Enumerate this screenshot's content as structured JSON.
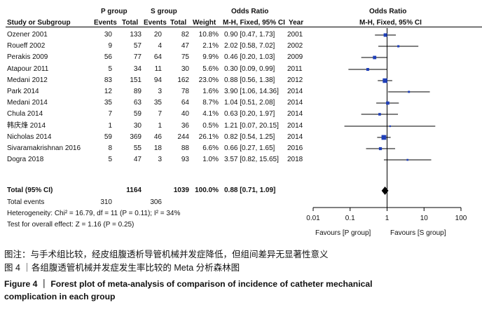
{
  "header": {
    "group_p": "P group",
    "group_s": "S group",
    "odds_ratio": "Odds Ratio",
    "study": "Study or Subgroup",
    "events": "Events",
    "total": "Total",
    "weight": "Weight",
    "method": "M-H, Fixed, 95% CI",
    "year": "Year",
    "plot_title": "Odds Ratio",
    "plot_method": "M-H, Fixed, 95% CI"
  },
  "chart_data": {
    "type": "forest",
    "x_scale": "log",
    "xlim": [
      0.01,
      100
    ],
    "ticks": [
      "0.01",
      "0.1",
      "1",
      "10",
      "100"
    ],
    "favours_left": "Favours [P group]",
    "favours_right": "Favours [S group]",
    "studies": [
      {
        "study": "Ozener 2001",
        "p_events": "30",
        "p_total": "133",
        "s_events": "20",
        "s_total": "82",
        "weight": "10.8%",
        "ci_text": "0.90 [0.47, 1.73]",
        "year": "2001",
        "or": 0.9,
        "lo": 0.47,
        "hi": 1.73,
        "w": 10.8
      },
      {
        "study": "Roueff 2002",
        "p_events": "9",
        "p_total": "57",
        "s_events": "4",
        "s_total": "47",
        "weight": "2.1%",
        "ci_text": "2.02 [0.58, 7.02]",
        "year": "2002",
        "or": 2.02,
        "lo": 0.58,
        "hi": 7.02,
        "w": 2.1
      },
      {
        "study": "Perakis 2009",
        "p_events": "56",
        "p_total": "77",
        "s_events": "64",
        "s_total": "75",
        "weight": "9.9%",
        "ci_text": "0.46 [0.20, 1.03]",
        "year": "2009",
        "or": 0.46,
        "lo": 0.2,
        "hi": 1.03,
        "w": 9.9
      },
      {
        "study": "Atapour 2011",
        "p_events": "5",
        "p_total": "34",
        "s_events": "11",
        "s_total": "30",
        "weight": "5.6%",
        "ci_text": "0.30 [0.09, 0.99]",
        "year": "2011",
        "or": 0.3,
        "lo": 0.09,
        "hi": 0.99,
        "w": 5.6
      },
      {
        "study": "Medani 2012",
        "p_events": "83",
        "p_total": "151",
        "s_events": "94",
        "s_total": "162",
        "weight": "23.0%",
        "ci_text": "0.88 [0.56, 1.38]",
        "year": "2012",
        "or": 0.88,
        "lo": 0.56,
        "hi": 1.38,
        "w": 23.0
      },
      {
        "study": "Park 2014",
        "p_events": "12",
        "p_total": "89",
        "s_events": "3",
        "s_total": "78",
        "weight": "1.6%",
        "ci_text": "3.90 [1.06, 14.36]",
        "year": "2014",
        "or": 3.9,
        "lo": 1.06,
        "hi": 14.36,
        "w": 1.6
      },
      {
        "study": "Medani 2014",
        "p_events": "35",
        "p_total": "63",
        "s_events": "35",
        "s_total": "64",
        "weight": "8.7%",
        "ci_text": "1.04 [0.51, 2.08]",
        "year": "2014",
        "or": 1.04,
        "lo": 0.51,
        "hi": 2.08,
        "w": 8.7
      },
      {
        "study": "Chula 2014",
        "p_events": "7",
        "p_total": "59",
        "s_events": "7",
        "s_total": "40",
        "weight": "4.1%",
        "ci_text": "0.63 [0.20, 1.97]",
        "year": "2014",
        "or": 0.63,
        "lo": 0.2,
        "hi": 1.97,
        "w": 4.1
      },
      {
        "study": "韩庆烽 2014",
        "p_events": "1",
        "p_total": "30",
        "s_events": "1",
        "s_total": "36",
        "weight": "0.5%",
        "ci_text": "1.21 [0.07, 20.15]",
        "year": "2014",
        "or": 1.21,
        "lo": 0.07,
        "hi": 20.15,
        "w": 0.5
      },
      {
        "study": "Nicholas 2014",
        "p_events": "59",
        "p_total": "369",
        "s_events": "46",
        "s_total": "244",
        "weight": "26.1%",
        "ci_text": "0.82 [0.54, 1.25]",
        "year": "2014",
        "or": 0.82,
        "lo": 0.54,
        "hi": 1.25,
        "w": 26.1
      },
      {
        "study": "Sivaramakrishnan 2016",
        "p_events": "8",
        "p_total": "55",
        "s_events": "18",
        "s_total": "88",
        "weight": "6.6%",
        "ci_text": "0.66 [0.27, 1.65]",
        "year": "2016",
        "or": 0.66,
        "lo": 0.27,
        "hi": 1.65,
        "w": 6.6
      },
      {
        "study": "Dogra 2018",
        "p_events": "5",
        "p_total": "47",
        "s_events": "3",
        "s_total": "93",
        "weight": "1.0%",
        "ci_text": "3.57 [0.82, 15.65]",
        "year": "2018",
        "or": 3.57,
        "lo": 0.82,
        "hi": 15.65,
        "w": 1.0
      }
    ],
    "total": {
      "label": "Total (95% CI)",
      "p_total": "1164",
      "s_total": "1039",
      "weight": "100.0%",
      "ci_text": "0.88 [0.71, 1.09]",
      "or": 0.88,
      "lo": 0.71,
      "hi": 1.09
    },
    "total_events": {
      "label": "Total events",
      "p_events": "310",
      "s_events": "306"
    },
    "heterogeneity": "Heterogeneity: Chi² = 16.79, df = 11 (P = 0.11); I² = 34%",
    "overall_effect": "Test for overall effect: Z = 1.16 (P = 0.25)"
  },
  "caption": {
    "note_cn": "图注：与手术组比较，经皮组腹透析导管机械并发症降低，但组间差异无显著性意义",
    "title_cn": "图 4 ｜各组腹透管机械并发症发生率比较的 Meta 分析森林图",
    "title_en_1": "Figure 4  ｜  Forest plot of meta-analysis of comparison of incidence of catheter mechanical",
    "title_en_2": "complication in each group"
  },
  "colors": {
    "marker": "#1f3fb8",
    "line": "#000000",
    "diamond": "#000000"
  }
}
